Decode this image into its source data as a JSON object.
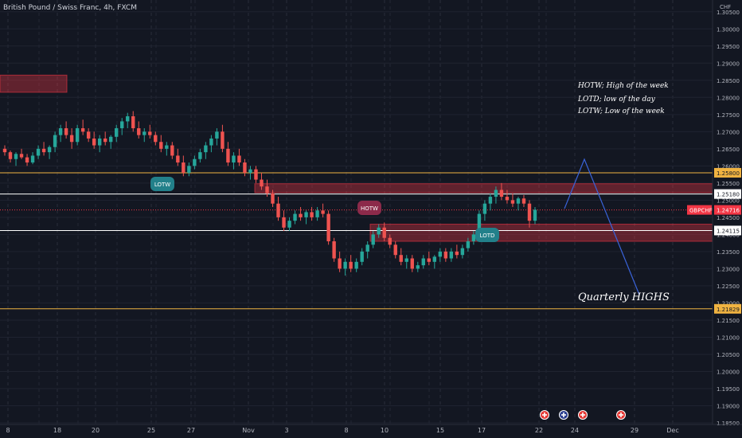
{
  "header": {
    "title": "British Pound / Swiss Franc, 4h, FXCM"
  },
  "annotations": {
    "notes": [
      "HOTW; High of the week",
      "LOTD; low of the day",
      "LOTW; Low of the week"
    ],
    "quarterly": "Quarterly HIGHS"
  },
  "chart_data": {
    "type": "candlestick",
    "symbol": "GBPCHF",
    "currency": "CHF",
    "x_labels": [
      "8",
      "18",
      "20",
      "25",
      "27",
      "Nov",
      "3",
      "8",
      "10",
      "15",
      "17",
      "22",
      "24",
      "29",
      "Dec"
    ],
    "y_ticks": [
      "1.30500",
      "1.30000",
      "1.29500",
      "1.29000",
      "1.28500",
      "1.28000",
      "1.27500",
      "1.27000",
      "1.26500",
      "1.26000",
      "1.25500",
      "1.25000",
      "1.24500",
      "1.24000",
      "1.23500",
      "1.23000",
      "1.22500",
      "1.22000",
      "1.21500",
      "1.21000",
      "1.20500",
      "1.20000",
      "1.19500",
      "1.19000",
      "1.18500"
    ],
    "ylim": [
      1.185,
      1.3075
    ],
    "price_levels": [
      {
        "label": "1.25800",
        "value": 1.258,
        "color": "#f0b341"
      },
      {
        "label": "1.25180",
        "value": 1.2518,
        "color": "#ffffff"
      },
      {
        "label": "1.24115",
        "value": 1.24115,
        "color": "#ffffff"
      },
      {
        "label": "1.21829",
        "value": 1.21829,
        "color": "#f0b341"
      }
    ],
    "current_price": {
      "label": "1.24716",
      "value": 1.24716,
      "color": "#f23645"
    },
    "zones": [
      {
        "y_top": 1.2865,
        "y_bottom": 1.2815,
        "x_start": 0.0,
        "x_end": 84.0
      },
      {
        "y_top": 1.2548,
        "y_bottom": 1.2522,
        "x_start": 320.0,
        "x_end": 900.0
      },
      {
        "y_top": 1.243,
        "y_bottom": 1.238,
        "x_start": 465.0,
        "x_end": 900.0
      }
    ],
    "callouts": [
      {
        "text": "LOTW",
        "color": "#22808a"
      },
      {
        "text": "HOTW",
        "color": "#8c2a4a"
      },
      {
        "text": "LOTD",
        "color": "#22808a"
      }
    ],
    "candles": [
      [
        1.265,
        1.266,
        1.263,
        1.264
      ],
      [
        1.264,
        1.2645,
        1.261,
        1.262
      ],
      [
        1.262,
        1.264,
        1.26,
        1.2635
      ],
      [
        1.2635,
        1.265,
        1.262,
        1.2625
      ],
      [
        1.2625,
        1.2635,
        1.26,
        1.261
      ],
      [
        1.261,
        1.264,
        1.2605,
        1.263
      ],
      [
        1.263,
        1.266,
        1.262,
        1.265
      ],
      [
        1.265,
        1.267,
        1.263,
        1.264
      ],
      [
        1.264,
        1.266,
        1.262,
        1.2655
      ],
      [
        1.2655,
        1.27,
        1.264,
        1.269
      ],
      [
        1.269,
        1.272,
        1.267,
        1.271
      ],
      [
        1.271,
        1.273,
        1.268,
        1.269
      ],
      [
        1.269,
        1.271,
        1.265,
        1.267
      ],
      [
        1.267,
        1.272,
        1.266,
        1.271
      ],
      [
        1.271,
        1.2735,
        1.269,
        1.27
      ],
      [
        1.27,
        1.271,
        1.267,
        1.268
      ],
      [
        1.268,
        1.27,
        1.265,
        1.266
      ],
      [
        1.266,
        1.269,
        1.264,
        1.268
      ],
      [
        1.268,
        1.27,
        1.266,
        1.267
      ],
      [
        1.267,
        1.269,
        1.265,
        1.2685
      ],
      [
        1.2685,
        1.272,
        1.267,
        1.271
      ],
      [
        1.271,
        1.274,
        1.269,
        1.273
      ],
      [
        1.273,
        1.2755,
        1.271,
        1.2745
      ],
      [
        1.2745,
        1.276,
        1.27,
        1.271
      ],
      [
        1.271,
        1.273,
        1.268,
        1.269
      ],
      [
        1.269,
        1.271,
        1.267,
        1.27
      ],
      [
        1.27,
        1.272,
        1.268,
        1.269
      ],
      [
        1.269,
        1.27,
        1.266,
        1.267
      ],
      [
        1.267,
        1.269,
        1.264,
        1.265
      ],
      [
        1.265,
        1.267,
        1.263,
        1.266
      ],
      [
        1.266,
        1.267,
        1.262,
        1.263
      ],
      [
        1.263,
        1.265,
        1.26,
        1.261
      ],
      [
        1.261,
        1.263,
        1.257,
        1.258
      ],
      [
        1.258,
        1.261,
        1.257,
        1.26
      ],
      [
        1.26,
        1.263,
        1.259,
        1.262
      ],
      [
        1.262,
        1.265,
        1.261,
        1.264
      ],
      [
        1.264,
        1.267,
        1.262,
        1.266
      ],
      [
        1.266,
        1.269,
        1.264,
        1.268
      ],
      [
        1.268,
        1.271,
        1.266,
        1.27
      ],
      [
        1.27,
        1.272,
        1.264,
        1.265
      ],
      [
        1.265,
        1.267,
        1.26,
        1.261
      ],
      [
        1.261,
        1.264,
        1.259,
        1.263
      ],
      [
        1.263,
        1.265,
        1.26,
        1.261
      ],
      [
        1.261,
        1.262,
        1.257,
        1.258
      ],
      [
        1.258,
        1.26,
        1.256,
        1.259
      ],
      [
        1.259,
        1.26,
        1.255,
        1.256
      ],
      [
        1.256,
        1.258,
        1.253,
        1.254
      ],
      [
        1.254,
        1.256,
        1.251,
        1.252
      ],
      [
        1.252,
        1.253,
        1.248,
        1.249
      ],
      [
        1.249,
        1.251,
        1.244,
        1.245
      ],
      [
        1.245,
        1.247,
        1.241,
        1.242
      ],
      [
        1.242,
        1.245,
        1.241,
        1.244
      ],
      [
        1.244,
        1.247,
        1.243,
        1.246
      ],
      [
        1.246,
        1.248,
        1.244,
        1.245
      ],
      [
        1.245,
        1.247,
        1.243,
        1.2465
      ],
      [
        1.2465,
        1.248,
        1.244,
        1.245
      ],
      [
        1.245,
        1.248,
        1.244,
        1.247
      ],
      [
        1.247,
        1.249,
        1.245,
        1.246
      ],
      [
        1.246,
        1.247,
        1.237,
        1.238
      ],
      [
        1.238,
        1.239,
        1.232,
        1.233
      ],
      [
        1.233,
        1.235,
        1.229,
        1.23
      ],
      [
        1.23,
        1.233,
        1.228,
        1.232
      ],
      [
        1.232,
        1.234,
        1.229,
        1.23
      ],
      [
        1.23,
        1.233,
        1.229,
        1.232
      ],
      [
        1.232,
        1.236,
        1.231,
        1.235
      ],
      [
        1.235,
        1.238,
        1.233,
        1.237
      ],
      [
        1.237,
        1.241,
        1.236,
        1.24
      ],
      [
        1.24,
        1.243,
        1.239,
        1.242
      ],
      [
        1.242,
        1.2435,
        1.238,
        1.239
      ],
      [
        1.239,
        1.24,
        1.236,
        1.237
      ],
      [
        1.237,
        1.238,
        1.233,
        1.234
      ],
      [
        1.234,
        1.236,
        1.231,
        1.232
      ],
      [
        1.232,
        1.234,
        1.23,
        1.233
      ],
      [
        1.233,
        1.234,
        1.229,
        1.23
      ],
      [
        1.23,
        1.232,
        1.229,
        1.231
      ],
      [
        1.231,
        1.234,
        1.23,
        1.233
      ],
      [
        1.233,
        1.235,
        1.231,
        1.232
      ],
      [
        1.232,
        1.234,
        1.23,
        1.2335
      ],
      [
        1.2335,
        1.236,
        1.232,
        1.235
      ],
      [
        1.235,
        1.236,
        1.232,
        1.233
      ],
      [
        1.233,
        1.236,
        1.232,
        1.235
      ],
      [
        1.235,
        1.237,
        1.233,
        1.234
      ],
      [
        1.234,
        1.237,
        1.233,
        1.236
      ],
      [
        1.236,
        1.239,
        1.235,
        1.238
      ],
      [
        1.238,
        1.241,
        1.237,
        1.24
      ],
      [
        1.24,
        1.247,
        1.239,
        1.246
      ],
      [
        1.246,
        1.25,
        1.244,
        1.249
      ],
      [
        1.249,
        1.252,
        1.247,
        1.251
      ],
      [
        1.251,
        1.254,
        1.249,
        1.253
      ],
      [
        1.253,
        1.255,
        1.25,
        1.251
      ],
      [
        1.251,
        1.253,
        1.249,
        1.25
      ],
      [
        1.25,
        1.252,
        1.248,
        1.249
      ],
      [
        1.249,
        1.251,
        1.247,
        1.2505
      ],
      [
        1.2505,
        1.2515,
        1.248,
        1.249
      ],
      [
        1.249,
        1.25,
        1.242,
        1.244
      ],
      [
        1.244,
        1.248,
        1.243,
        1.2472
      ]
    ]
  }
}
